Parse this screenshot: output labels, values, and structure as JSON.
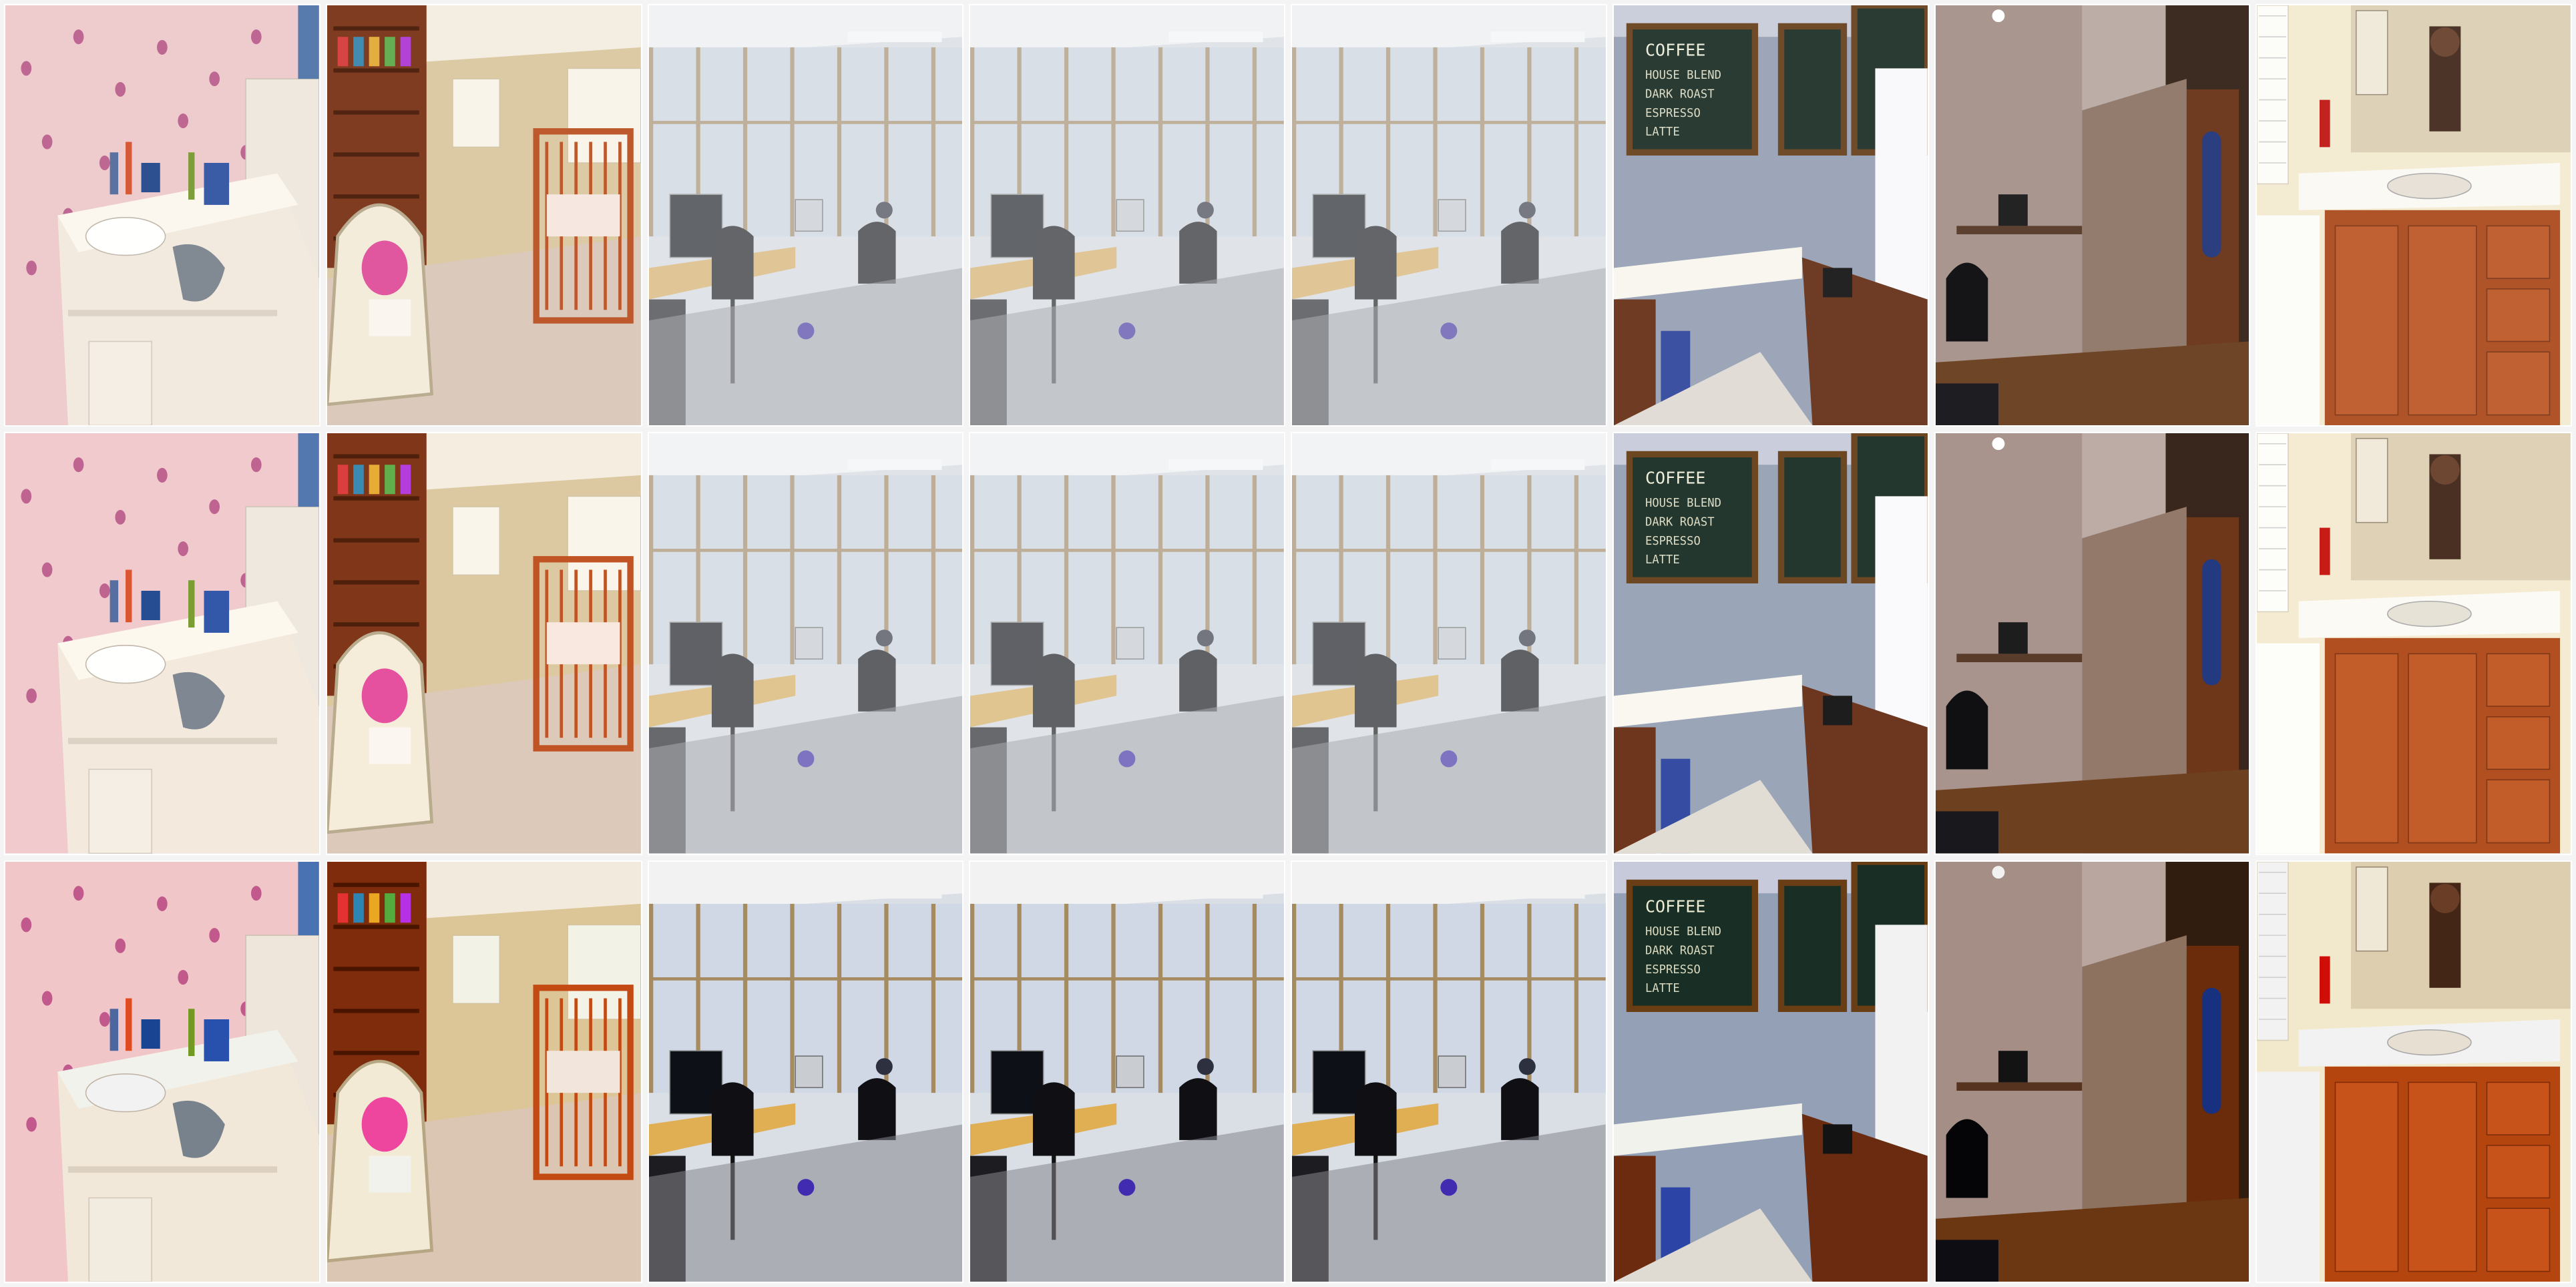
{
  "grid": {
    "rows": 3,
    "cols": 8
  },
  "scenes": [
    {
      "key": "bathroom-polkadot",
      "icon": "bathroom-sink-icon"
    },
    {
      "key": "nursery",
      "icon": "crib-icon"
    },
    {
      "key": "office-1",
      "icon": "office-computer-icon"
    },
    {
      "key": "office-2",
      "icon": "office-computer-icon"
    },
    {
      "key": "office-3",
      "icon": "office-computer-icon"
    },
    {
      "key": "coffee-shop",
      "icon": "coffee-counter-icon"
    },
    {
      "key": "dark-office-door",
      "icon": "door-icon"
    },
    {
      "key": "bathroom-vanity",
      "icon": "vanity-cabinet-icon"
    }
  ],
  "chalkboard_text": {
    "heading": "COFFEE",
    "lines": [
      "HOUSE BLEND",
      "DARK ROAST",
      "ESPRESSO",
      "LATTE"
    ]
  },
  "colors": {
    "wall_pink": "#e8c7c9",
    "dots": "#a6467a",
    "counter": "#ede5da",
    "wood": "#7a3b22",
    "office_window": "#cfd6df",
    "office_desk": "#d7b16b",
    "chalkboard": "#2a3a32",
    "vanity_wood": "#a8532a"
  }
}
